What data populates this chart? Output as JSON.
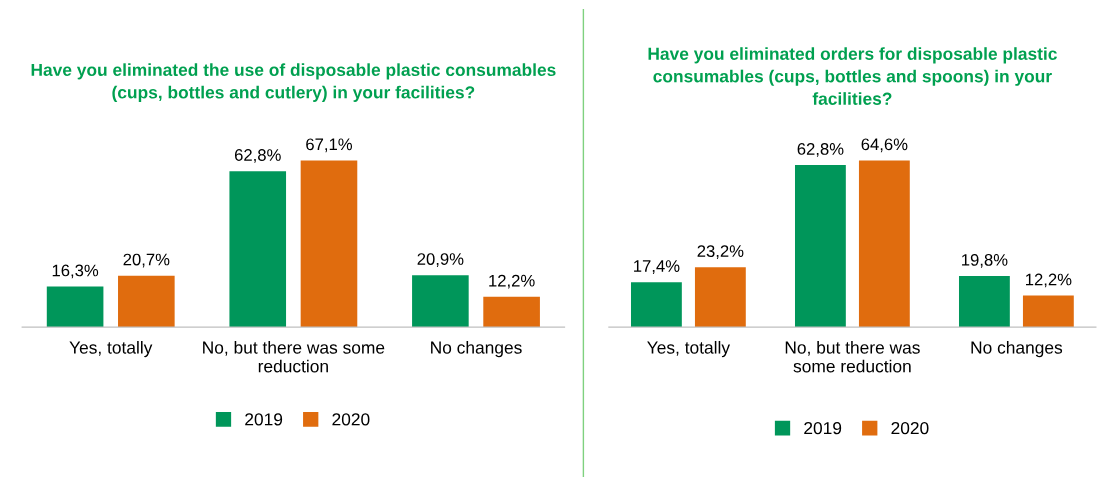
{
  "chart_data": [
    {
      "type": "bar",
      "title": "Have you eliminated the use of disposable plastic consumables\n(cups, bottles and cutlery) in your facilities?",
      "categories": [
        "Yes, totally",
        "No, but there was some\nreduction",
        "No changes"
      ],
      "series": [
        {
          "name": "2019",
          "color": "#00965a",
          "values": [
            16.3,
            62.8,
            20.9
          ],
          "value_labels": [
            "16,3%",
            "62,8%",
            "20,9%"
          ]
        },
        {
          "name": "2020",
          "color": "#e06c0e",
          "values": [
            20.7,
            67.1,
            12.2
          ],
          "value_labels": [
            "20,7%",
            "67,1%",
            "12,2%"
          ]
        }
      ],
      "legend": "bottom",
      "grid": false,
      "tick_labels": "x"
    },
    {
      "type": "bar",
      "title": "Have you eliminated orders for disposable plastic\nconsumables (cups, bottles and spoons) in your\nfacilities?",
      "categories": [
        "Yes, totally",
        "No, but there was\nsome reduction",
        "No changes"
      ],
      "series": [
        {
          "name": "2019",
          "color": "#00965a",
          "values": [
            17.4,
            62.8,
            19.8
          ],
          "value_labels": [
            "17,4%",
            "62,8%",
            "19,8%"
          ]
        },
        {
          "name": "2020",
          "color": "#e06c0e",
          "values": [
            23.2,
            64.6,
            12.2
          ],
          "value_labels": [
            "23,2%",
            "64,6%",
            "12,2%"
          ]
        }
      ],
      "legend": "bottom",
      "grid": false,
      "tick_labels": "x"
    }
  ]
}
